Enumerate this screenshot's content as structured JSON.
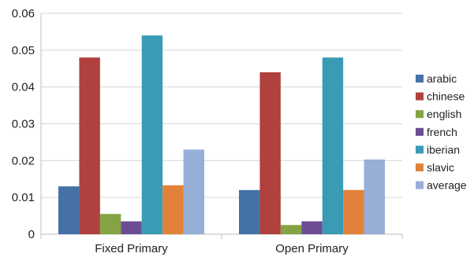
{
  "chart_data": {
    "type": "bar",
    "title": "",
    "xlabel": "",
    "ylabel": "",
    "categories": [
      "Fixed Primary",
      "Open Primary"
    ],
    "series": [
      {
        "name": "arabic",
        "color": "#4472A8",
        "values": [
          0.013,
          0.012
        ]
      },
      {
        "name": "chinese",
        "color": "#B0413E",
        "values": [
          0.048,
          0.044
        ]
      },
      {
        "name": "english",
        "color": "#84A443",
        "values": [
          0.0055,
          0.0025
        ]
      },
      {
        "name": "french",
        "color": "#6C4C92",
        "values": [
          0.0035,
          0.0035
        ]
      },
      {
        "name": "iberian",
        "color": "#3A9BB4",
        "values": [
          0.054,
          0.048
        ]
      },
      {
        "name": "slavic",
        "color": "#E0823A",
        "values": [
          0.0133,
          0.012
        ]
      },
      {
        "name": "average",
        "color": "#97AED6",
        "values": [
          0.023,
          0.0203
        ]
      }
    ],
    "ylim": [
      0,
      0.06
    ],
    "yticks": [
      "0",
      "0.01",
      "0.02",
      "0.03",
      "0.04",
      "0.05",
      "0.06"
    ],
    "ytick_values": [
      0,
      0.01,
      0.02,
      0.03,
      0.04,
      0.05,
      0.06
    ],
    "grid": true,
    "legend_position": "right"
  }
}
